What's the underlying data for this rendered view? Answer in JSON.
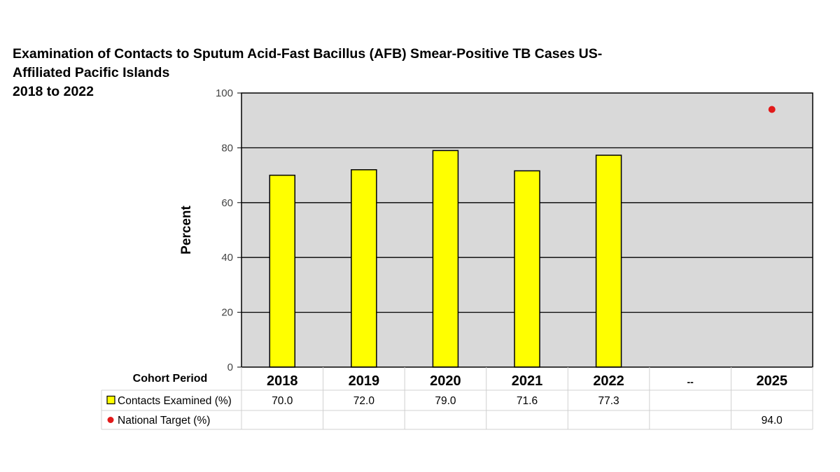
{
  "chart_data": {
    "type": "bar",
    "title_lines": [
      "Examination of Contacts to Sputum Acid-Fast Bacillus (AFB) Smear-Positive TB Cases US-",
      "Affiliated Pacific Islands",
      "2018 to 2022"
    ],
    "ylabel": "Percent",
    "xlabel": "Cohort Period",
    "ylim": [
      0,
      100
    ],
    "yticks": [
      0,
      20,
      40,
      60,
      80,
      100
    ],
    "grid": true,
    "categories": [
      "2018",
      "2019",
      "2020",
      "2021",
      "2022",
      "--",
      "2025"
    ],
    "series": [
      {
        "name": "Contacts Examined (%)",
        "kind": "bar",
        "color": "#ffff00",
        "values": [
          70.0,
          72.0,
          79.0,
          71.6,
          77.3,
          null,
          null
        ],
        "table_values": [
          "70.0",
          "72.0",
          "79.0",
          "71.6",
          "77.3",
          "",
          ""
        ]
      },
      {
        "name": "National Target (%)",
        "kind": "point",
        "color": "#e21a1a",
        "values": [
          null,
          null,
          null,
          null,
          null,
          null,
          94.0
        ],
        "table_values": [
          "",
          "",
          "",
          "",
          "",
          "",
          "94.0"
        ]
      }
    ],
    "plot_background": "#d9d9d9",
    "legend_placement": "data-table"
  }
}
